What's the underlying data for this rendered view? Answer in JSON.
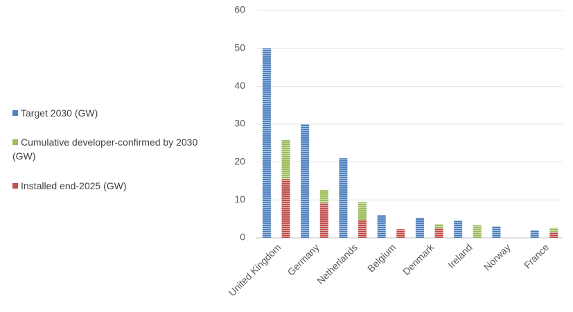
{
  "chart_data": {
    "type": "bar",
    "categories": [
      "United Kingdom",
      "Germany",
      "Netherlands",
      "Belgium",
      "Denmark",
      "Ireland",
      "Norway",
      "France"
    ],
    "series": [
      {
        "name": "Target 2030 (GW)",
        "color": "#4f81bd",
        "values": [
          50,
          30,
          21,
          6,
          5.3,
          4.5,
          3,
          2
        ]
      },
      {
        "name": "Cumulative developer-confirmed by 2030 (GW)",
        "color": "#9bbb59",
        "values": [
          10.3,
          3.4,
          4.7,
          0,
          1.0,
          3.3,
          0,
          1.1
        ]
      },
      {
        "name": "Installed end-2025 (GW)",
        "color": "#c0504d",
        "values": [
          15.5,
          9.2,
          4.7,
          2.3,
          2.6,
          0,
          0,
          1.5
        ]
      }
    ],
    "ylim": [
      0,
      60
    ],
    "yticks": [
      0,
      10,
      20,
      30,
      40,
      50,
      60
    ],
    "grid": true,
    "legend": "left"
  }
}
